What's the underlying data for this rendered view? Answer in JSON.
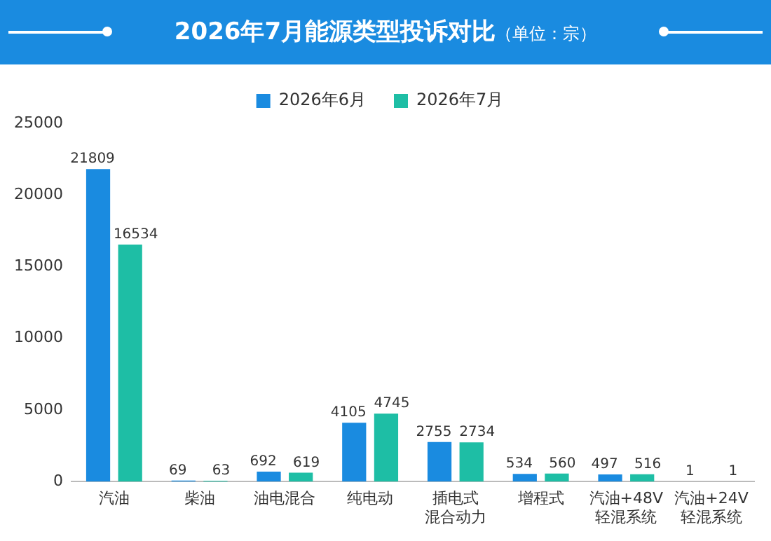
{
  "chart_data": {
    "type": "bar",
    "title": "2026年7月能源类型投诉对比",
    "subtitle": "（单位：宗）",
    "categories": [
      "汽油",
      "柴油",
      "油电混合",
      "纯电动",
      "插电式混合动力",
      "增程式",
      "汽油+48V轻混系统",
      "汽油+24V轻混系统"
    ],
    "series": [
      {
        "name": "2026年6月",
        "color": "#1a8be0",
        "values": [
          21809,
          69,
          692,
          4105,
          2755,
          534,
          497,
          1
        ]
      },
      {
        "name": "2026年7月",
        "color": "#1ebea5",
        "values": [
          16534,
          63,
          619,
          4745,
          2734,
          560,
          516,
          1
        ]
      }
    ],
    "ylim": [
      0,
      25000
    ],
    "yticks": [
      0,
      5000,
      10000,
      15000,
      20000,
      25000
    ],
    "grid": false,
    "legend": "top",
    "data_labels": true
  }
}
